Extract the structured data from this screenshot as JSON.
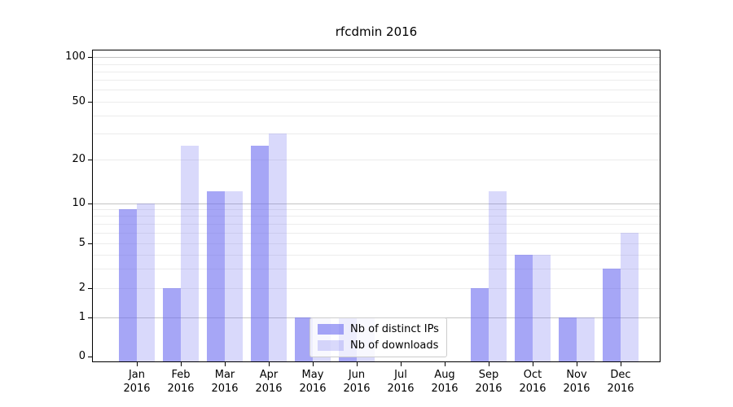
{
  "title": "rfcdmin 2016",
  "chart_data": {
    "type": "bar",
    "title": "rfcdmin 2016",
    "categories": [
      "Jan",
      "Feb",
      "Mar",
      "Apr",
      "May",
      "Jun",
      "Jul",
      "Aug",
      "Sep",
      "Oct",
      "Nov",
      "Dec"
    ],
    "year_label": "2016",
    "series": [
      {
        "name": "Nb of distinct IPs",
        "color": "rgba(107,107,240,0.60)",
        "values": [
          9,
          2,
          12,
          25,
          1,
          1,
          0,
          0,
          2,
          4,
          1,
          3
        ]
      },
      {
        "name": "Nb of downloads",
        "color": "rgba(107,107,240,0.26)",
        "values": [
          10,
          25,
          12,
          30,
          1,
          1,
          0,
          0,
          12,
          4,
          1,
          6
        ]
      }
    ],
    "y_axis": {
      "ticks": [
        100,
        50,
        20,
        10,
        5,
        2,
        1,
        0
      ],
      "scale": "log-like (symlog with 0 baseline)",
      "major_grid_values": [
        1,
        10,
        100
      ],
      "minor_grid_values": [
        2,
        3,
        4,
        5,
        6,
        7,
        8,
        9,
        20,
        30,
        40,
        50,
        60,
        70,
        80,
        90
      ],
      "range": [
        0,
        110
      ]
    },
    "x_axis": {
      "label_lines": 2
    },
    "legend": {
      "position": "lower center",
      "entries": [
        "Nb of distinct IPs",
        "Nb of downloads"
      ]
    },
    "grid": true
  },
  "colors": {
    "bar_dark": "rgba(107,107,240,0.60)",
    "bar_light": "rgba(107,107,240,0.26)",
    "grid_major": "#c4c4c4",
    "grid_minor": "#ececec",
    "frame": "#000000"
  }
}
